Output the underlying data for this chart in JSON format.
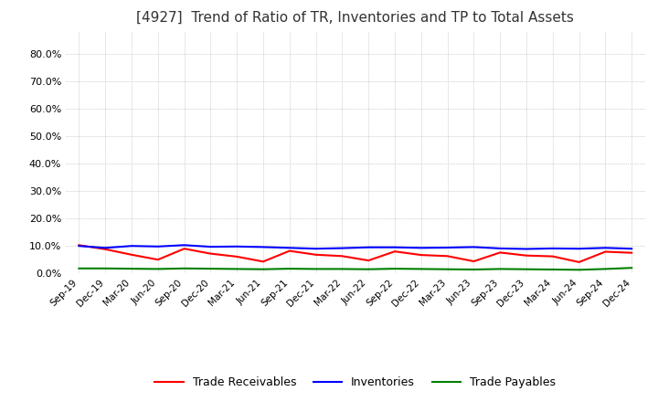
{
  "title": "[4927]  Trend of Ratio of TR, Inventories and TP to Total Assets",
  "title_fontsize": 11,
  "ylim": [
    0.0,
    0.88
  ],
  "yticks": [
    0.0,
    0.1,
    0.2,
    0.3,
    0.4,
    0.5,
    0.6,
    0.7,
    0.8
  ],
  "ytick_labels": [
    "0.0%",
    "10.0%",
    "20.0%",
    "30.0%",
    "40.0%",
    "50.0%",
    "60.0%",
    "70.0%",
    "80.0%"
  ],
  "x_labels": [
    "Sep-19",
    "Dec-19",
    "Mar-20",
    "Jun-20",
    "Sep-20",
    "Dec-20",
    "Mar-21",
    "Jun-21",
    "Sep-21",
    "Dec-21",
    "Mar-22",
    "Jun-22",
    "Sep-22",
    "Dec-22",
    "Mar-23",
    "Jun-23",
    "Sep-23",
    "Dec-23",
    "Mar-24",
    "Jun-24",
    "Sep-24",
    "Dec-24"
  ],
  "trade_receivables": [
    0.103,
    0.088,
    0.068,
    0.05,
    0.09,
    0.072,
    0.061,
    0.043,
    0.082,
    0.068,
    0.063,
    0.047,
    0.08,
    0.067,
    0.063,
    0.044,
    0.076,
    0.065,
    0.062,
    0.041,
    0.079,
    0.075
  ],
  "inventories": [
    0.1,
    0.093,
    0.1,
    0.098,
    0.103,
    0.097,
    0.098,
    0.096,
    0.093,
    0.09,
    0.092,
    0.095,
    0.095,
    0.093,
    0.094,
    0.096,
    0.091,
    0.089,
    0.091,
    0.09,
    0.093,
    0.09
  ],
  "trade_payables": [
    0.018,
    0.018,
    0.017,
    0.016,
    0.018,
    0.017,
    0.016,
    0.015,
    0.017,
    0.016,
    0.016,
    0.015,
    0.017,
    0.016,
    0.015,
    0.014,
    0.016,
    0.015,
    0.014,
    0.013,
    0.016,
    0.02
  ],
  "tr_color": "#FF0000",
  "inv_color": "#0000FF",
  "tp_color": "#008000",
  "background_color": "#FFFFFF",
  "grid_color": "#AAAAAA",
  "legend_labels": [
    "Trade Receivables",
    "Inventories",
    "Trade Payables"
  ]
}
